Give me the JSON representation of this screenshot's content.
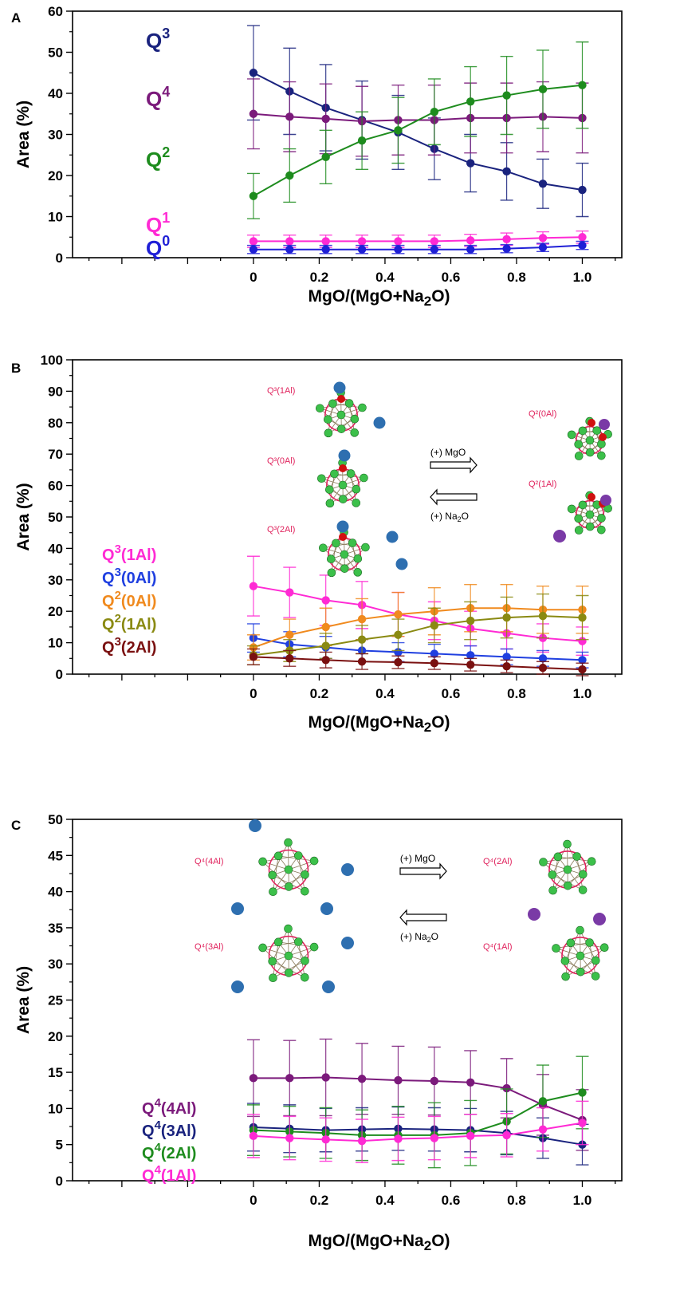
{
  "colors": {
    "Q0": "#1f1fd6",
    "Q1": "#ff2ad4",
    "Q2": "#1e8c1e",
    "Q3": "#1a237e",
    "Q4": "#7b1a7b",
    "Q3_1Al": "#ff2ad4",
    "Q3_0Al": "#1f3fe0",
    "Q2_0Al": "#f08a1e",
    "Q2_1Al": "#8a8a12",
    "Q3_2Al": "#7a1010",
    "Q4_4Al": "#7b1a7b",
    "Q4_3Al": "#1a237e",
    "Q4_2Al": "#1e8c1e",
    "Q4_1Al": "#ff2ad4",
    "ring": "#e0245e",
    "cation_na": "#2e6fb0",
    "cation_mg": "#7a3aa6",
    "oxygen": "#3cc04a",
    "nbo": "#d01010"
  },
  "chart_data": [
    {
      "panel": "A",
      "type": "line",
      "xlabel": "MgO/(MgO+Na2O)",
      "ylabel": "Area (%)",
      "xlim": [
        -0.55,
        1.12
      ],
      "ylim": [
        0,
        60
      ],
      "x": [
        0,
        0.11,
        0.22,
        0.33,
        0.44,
        0.55,
        0.66,
        0.77,
        0.88,
        1.0
      ],
      "xticks": [
        "0",
        "0.2",
        "0.4",
        "0.6",
        "0.8",
        "1.0"
      ],
      "xtick_values": [
        0,
        0.2,
        0.4,
        0.6,
        0.8,
        1.0
      ],
      "yticks": [
        0,
        10,
        20,
        30,
        40,
        50,
        60
      ],
      "series": [
        {
          "name": "Q3",
          "color_key": "Q3",
          "values": [
            45,
            40.5,
            36.5,
            33.5,
            30.5,
            26.5,
            23,
            21,
            18,
            16.5
          ],
          "errors": [
            11.5,
            10.5,
            10.5,
            9.5,
            9,
            7.5,
            7,
            7,
            6,
            6.5
          ]
        },
        {
          "name": "Q4",
          "color_key": "Q4",
          "values": [
            35,
            34.3,
            33.8,
            33.2,
            33.5,
            33.5,
            34,
            34,
            34.3,
            34
          ],
          "errors": [
            8.5,
            8.5,
            8.5,
            8.5,
            8.5,
            8.5,
            8.5,
            8.5,
            8.5,
            8.5
          ]
        },
        {
          "name": "Q2",
          "color_key": "Q2",
          "values": [
            15,
            20,
            24.5,
            28.5,
            31,
            35.5,
            38,
            39.5,
            41,
            42
          ],
          "errors": [
            5.5,
            6.5,
            6.5,
            7,
            8,
            8,
            8.5,
            9.5,
            9.5,
            10.5
          ]
        },
        {
          "name": "Q1",
          "color_key": "Q1",
          "values": [
            4,
            4,
            4,
            4,
            4,
            4,
            4.2,
            4.5,
            4.8,
            5
          ],
          "errors": [
            1.5,
            1.5,
            1.5,
            1.5,
            1.5,
            1.5,
            1.5,
            1.5,
            1.5,
            1.5
          ]
        },
        {
          "name": "Q0",
          "color_key": "Q0",
          "values": [
            2,
            2,
            2,
            2,
            2,
            2,
            2,
            2.2,
            2.5,
            3
          ],
          "errors": [
            1,
            1,
            1,
            1,
            1,
            1,
            1,
            1,
            1,
            1
          ]
        }
      ],
      "legend": [
        {
          "base": "Q",
          "sup": "3",
          "color_key": "Q3"
        },
        {
          "base": "Q",
          "sup": "4",
          "color_key": "Q4"
        },
        {
          "base": "Q",
          "sup": "2",
          "color_key": "Q2"
        },
        {
          "base": "Q",
          "sup": "1",
          "color_key": "Q1"
        },
        {
          "base": "Q",
          "sup": "0",
          "color_key": "Q0"
        }
      ]
    },
    {
      "panel": "B",
      "type": "line",
      "xlabel": "MgO/(MgO+Na2O)",
      "ylabel": "Area (%)",
      "xlim": [
        -0.55,
        1.12
      ],
      "ylim": [
        0,
        100
      ],
      "x": [
        0,
        0.11,
        0.22,
        0.33,
        0.44,
        0.55,
        0.66,
        0.77,
        0.88,
        1.0
      ],
      "xticks": [
        "0",
        "0.2",
        "0.4",
        "0.6",
        "0.8",
        "1.0"
      ],
      "xtick_values": [
        0,
        0.2,
        0.4,
        0.6,
        0.8,
        1.0
      ],
      "yticks": [
        0,
        10,
        20,
        30,
        40,
        50,
        60,
        70,
        80,
        90,
        100
      ],
      "series": [
        {
          "name": "Q3(1Al)",
          "color_key": "Q3_1Al",
          "values": [
            28,
            26,
            23.5,
            22,
            19,
            17,
            14.5,
            13,
            11.5,
            10.5
          ],
          "errors": [
            9.5,
            8,
            8,
            7.5,
            7,
            6,
            5.5,
            5,
            4.5,
            4.5
          ]
        },
        {
          "name": "Q3(0Al)",
          "color_key": "Q3_0Al",
          "values": [
            11.5,
            9.5,
            8.5,
            7.5,
            7,
            6.5,
            6,
            5.5,
            5,
            4.5
          ],
          "errors": [
            4.5,
            4,
            3.5,
            3.5,
            3,
            3,
            3,
            2.5,
            2.5,
            2.5
          ]
        },
        {
          "name": "Q2(0Al)",
          "color_key": "Q2_0Al",
          "values": [
            8.5,
            12.5,
            15,
            17.5,
            19,
            20,
            21,
            21,
            20.5,
            20.5
          ],
          "errors": [
            4,
            5,
            6,
            6.5,
            7,
            7.5,
            7.5,
            7.5,
            7.5,
            7.5
          ]
        },
        {
          "name": "Q2(1Al)",
          "color_key": "Q2_1Al",
          "values": [
            6,
            7.5,
            9,
            11,
            12.5,
            15.5,
            17,
            18,
            18.5,
            18
          ],
          "errors": [
            3,
            3.5,
            4,
            4.5,
            5,
            5.5,
            6,
            6.5,
            7,
            7
          ]
        },
        {
          "name": "Q3(2Al)",
          "color_key": "Q3_2Al",
          "values": [
            5.5,
            5,
            4.5,
            4,
            3.8,
            3.5,
            3,
            2.5,
            2,
            1.5
          ],
          "errors": [
            2.5,
            2.5,
            2.5,
            2.5,
            2,
            2,
            2,
            2,
            2,
            2
          ]
        }
      ],
      "legend": [
        {
          "base": "Q",
          "sup": "3",
          "tail": "(1Al)",
          "color_key": "Q3_1Al"
        },
        {
          "base": "Q",
          "sup": "3",
          "tail": "(0Al)",
          "color_key": "Q3_0Al"
        },
        {
          "base": "Q",
          "sup": "2",
          "tail": "(0Al)",
          "color_key": "Q2_0Al"
        },
        {
          "base": "Q",
          "sup": "2",
          "tail": "(1Al)",
          "color_key": "Q2_1Al"
        },
        {
          "base": "Q",
          "sup": "3",
          "tail": "(2Al)",
          "color_key": "Q3_2Al"
        }
      ],
      "schematic": {
        "left_labels": [
          "Q³(1Al)",
          "Q³(0Al)",
          "Q³(2Al)"
        ],
        "right_labels": [
          "Q²(0Al)",
          "Q²(1Al)"
        ],
        "arrow_forward": "(+) MgO",
        "arrow_backward_prefix": "(+) Na",
        "arrow_backward_sub": "2",
        "arrow_backward_suffix": "O"
      }
    },
    {
      "panel": "C",
      "type": "line",
      "xlabel": "MgO/(MgO+Na2O)",
      "ylabel": "Area (%)",
      "xlim": [
        -0.55,
        1.12
      ],
      "ylim": [
        0,
        50
      ],
      "x": [
        0,
        0.11,
        0.22,
        0.33,
        0.44,
        0.55,
        0.66,
        0.77,
        0.88,
        1.0
      ],
      "xticks": [
        "0",
        "0.2",
        "0.4",
        "0.6",
        "0.8",
        "1.0"
      ],
      "xtick_values": [
        0,
        0.2,
        0.4,
        0.6,
        0.8,
        1.0
      ],
      "yticks": [
        0,
        5,
        10,
        15,
        20,
        25,
        30,
        35,
        40,
        45,
        50
      ],
      "series": [
        {
          "name": "Q4(4Al)",
          "color_key": "Q4_4Al",
          "values": [
            14.2,
            14.2,
            14.3,
            14.1,
            13.9,
            13.8,
            13.6,
            12.8,
            10.5,
            8.4
          ],
          "errors": [
            5.3,
            5.2,
            5.3,
            4.9,
            4.7,
            4.7,
            4.4,
            4.1,
            4.2,
            4.2
          ]
        },
        {
          "name": "Q4(3Al)",
          "color_key": "Q4_3Al",
          "values": [
            7.4,
            7.2,
            7.0,
            7.1,
            7.2,
            7.1,
            7.0,
            6.6,
            5.9,
            5.0
          ],
          "errors": [
            3.3,
            3.3,
            3.0,
            3.0,
            3.0,
            3.0,
            3.0,
            3.0,
            2.8,
            2.8
          ]
        },
        {
          "name": "Q4(2Al)",
          "color_key": "Q4_2Al",
          "values": [
            7.0,
            6.8,
            6.6,
            6.3,
            6.3,
            6.3,
            6.6,
            8.2,
            11.0,
            12.2
          ],
          "errors": [
            3.5,
            3.5,
            3.5,
            3.5,
            4.0,
            4.5,
            4.5,
            4.5,
            5.0,
            5.0
          ]
        },
        {
          "name": "Q4(1Al)",
          "color_key": "Q4_1Al",
          "values": [
            6.2,
            5.9,
            5.7,
            5.5,
            5.8,
            5.9,
            6.2,
            6.3,
            7.1,
            8.0
          ],
          "errors": [
            3.0,
            3.0,
            3.0,
            3.0,
            3.0,
            3.0,
            3.0,
            3.0,
            3.0,
            3.0
          ]
        }
      ],
      "legend": [
        {
          "base": "Q",
          "sup": "4",
          "tail": "(4Al)",
          "color_key": "Q4_4Al"
        },
        {
          "base": "Q",
          "sup": "4",
          "tail": "(3Al)",
          "color_key": "Q4_3Al"
        },
        {
          "base": "Q",
          "sup": "4",
          "tail": "(2Al)",
          "color_key": "Q4_2Al"
        },
        {
          "base": "Q",
          "sup": "4",
          "tail": "(1Al)",
          "color_key": "Q4_1Al"
        }
      ],
      "schematic": {
        "left_labels": [
          "Q⁴(4Al)",
          "Q⁴(3Al)"
        ],
        "right_labels": [
          "Q⁴(2Al)",
          "Q⁴(1Al)"
        ],
        "arrow_forward": "(+) MgO",
        "arrow_backward_prefix": "(+) Na",
        "arrow_backward_sub": "2",
        "arrow_backward_suffix": "O"
      }
    }
  ],
  "xlabel_parts": {
    "prefix": "MgO/(MgO+Na",
    "sub": "2",
    "suffix": "O)"
  }
}
